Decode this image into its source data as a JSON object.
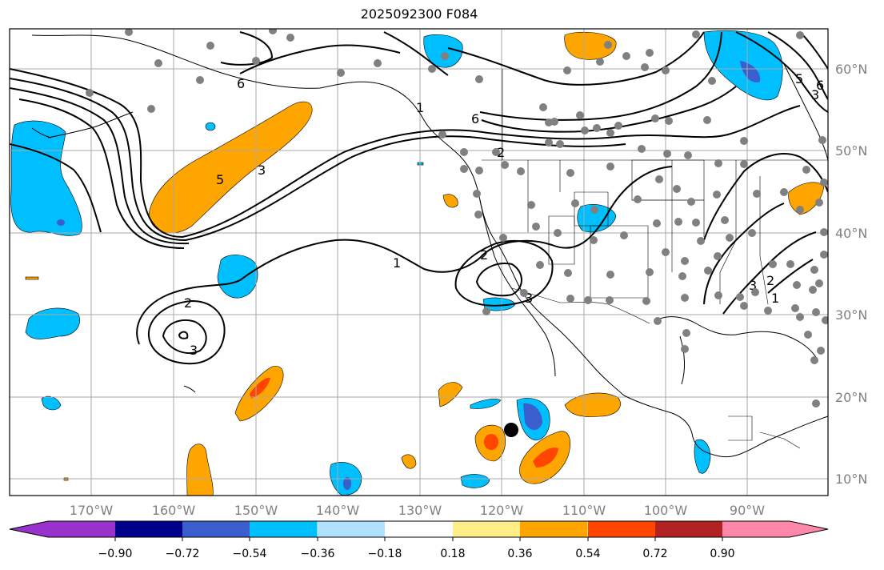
{
  "title": "2025092300 F084",
  "map": {
    "land_color": "#ffffff",
    "ocean_color": "#ffffff",
    "station_marker_color": "#808080",
    "storm_marker_color": "#000000",
    "longitude_labels": [
      "170°W",
      "160°W",
      "150°W",
      "140°W",
      "130°W",
      "120°W",
      "110°W",
      "100°W",
      "90°W"
    ],
    "latitude_labels": [
      "60°N",
      "50°N",
      "40°N",
      "30°N",
      "20°N",
      "10°N"
    ],
    "contour_labels": [
      "1",
      "2",
      "3",
      "6",
      "2",
      "3",
      "6",
      "5",
      "1",
      "2",
      "3",
      "2",
      "3",
      "1",
      "5",
      "3",
      "6"
    ]
  },
  "colorbar": {
    "ticks": [
      "−0.90",
      "−0.72",
      "−0.54",
      "−0.36",
      "−0.18",
      "0.18",
      "0.36",
      "0.54",
      "0.72",
      "0.90"
    ],
    "colors": [
      "#9932cc",
      "#00008b",
      "#3a5fcd",
      "#00bfff",
      "#b0e2ff",
      "#ffffff",
      "#ffee88",
      "#ffa500",
      "#ff4500",
      "#b22222",
      "#ff88aa"
    ]
  }
}
